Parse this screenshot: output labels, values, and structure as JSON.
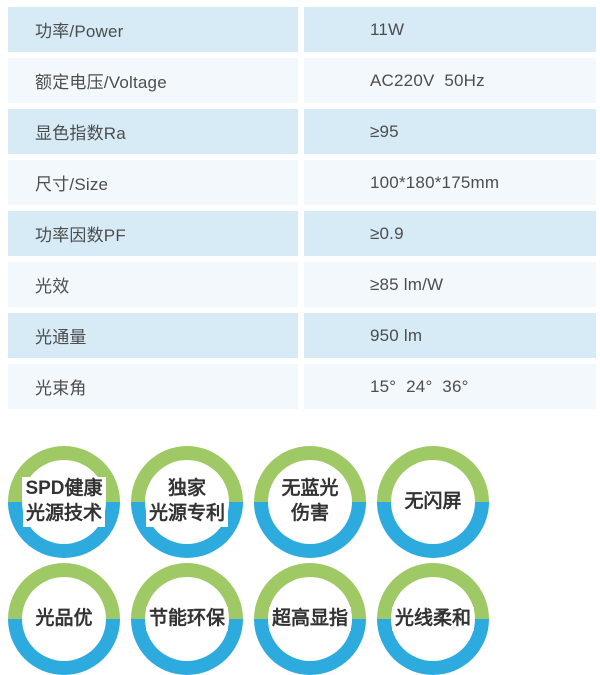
{
  "colors": {
    "row_dark_bg": "#d7ebf7",
    "row_light_bg": "#f2f8fc",
    "table_text": "#4d4d4d",
    "badge_ring_green": "#9ec964",
    "badge_ring_blue": "#2daade",
    "badge_text": "#333333",
    "page_bg": "#ffffff"
  },
  "spec_table": {
    "rows": [
      {
        "label": "功率/Power",
        "value": "11W"
      },
      {
        "label": "额定电压/Voltage",
        "value": "AC220V  50Hz"
      },
      {
        "label": "显色指数Ra",
        "value": "≥95"
      },
      {
        "label": "尺寸/Size",
        "value": "100*180*175mm"
      },
      {
        "label": "功率因数PF",
        "value": "≥0.9"
      },
      {
        "label": "光效",
        "value": "≥85 lm/W"
      },
      {
        "label": "光通量",
        "value": "950 lm"
      },
      {
        "label": "光束角",
        "value": "15°  24°  36°"
      }
    ]
  },
  "badges": [
    {
      "line1": "SPD健康",
      "line2": "光源技术"
    },
    {
      "line1": "独家",
      "line2": "光源专利"
    },
    {
      "line1": "无蓝光",
      "line2": "伤害"
    },
    {
      "line1": "无闪屏",
      "line2": ""
    },
    {
      "line1": "光品优",
      "line2": ""
    },
    {
      "line1": "节能环保",
      "line2": ""
    },
    {
      "line1": "超高显指",
      "line2": ""
    },
    {
      "line1": "光线柔和",
      "line2": ""
    }
  ]
}
